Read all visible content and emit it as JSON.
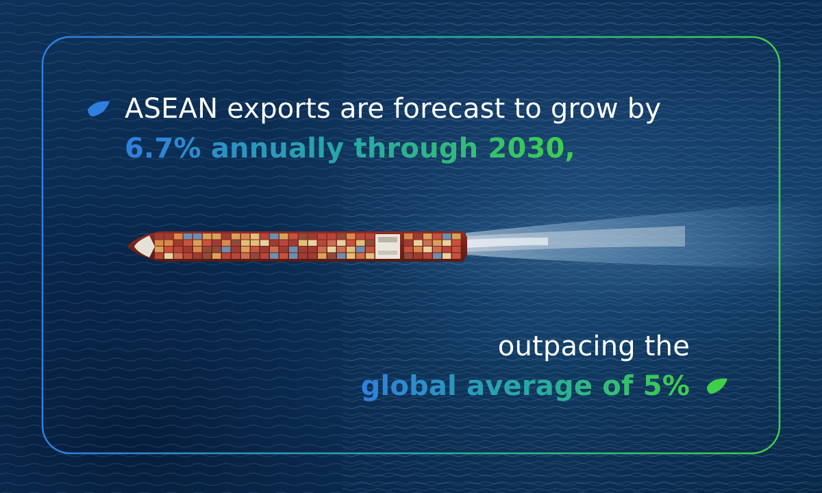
{
  "headline": {
    "line1": "ASEAN exports are forecast to grow by",
    "line2": "6.7% annually through 2030,",
    "line3": "outpacing the",
    "line4": "global average of 5%"
  },
  "colors": {
    "accent_blue": "#2f7fe0",
    "accent_teal": "#27a9a6",
    "accent_green": "#3fcf4a",
    "ocean": "#0d3158"
  },
  "icons": {
    "bullet_start": "leaf-bullet-icon",
    "bullet_end": "leaf-bullet-icon"
  }
}
